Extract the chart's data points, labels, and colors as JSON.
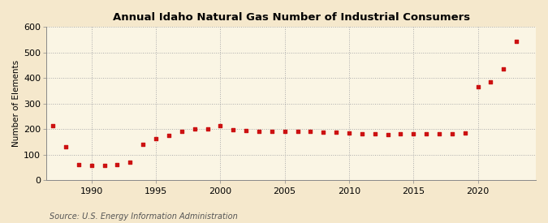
{
  "title": "Annual Idaho Natural Gas Number of Industrial Consumers",
  "ylabel": "Number of Elements",
  "source": "Source: U.S. Energy Information Administration",
  "background_color": "#f5e8cc",
  "plot_background_color": "#faf5e4",
  "marker_color": "#cc1111",
  "years": [
    1987,
    1988,
    1989,
    1990,
    1991,
    1992,
    1993,
    1994,
    1995,
    1996,
    1997,
    1998,
    1999,
    2000,
    2001,
    2002,
    2003,
    2004,
    2005,
    2006,
    2007,
    2008,
    2009,
    2010,
    2011,
    2012,
    2013,
    2014,
    2015,
    2016,
    2017,
    2018,
    2019,
    2020,
    2021,
    2022,
    2023
  ],
  "values": [
    213,
    130,
    63,
    60,
    60,
    62,
    70,
    140,
    163,
    175,
    193,
    200,
    200,
    213,
    197,
    195,
    193,
    193,
    192,
    193,
    192,
    190,
    188,
    185,
    183,
    182,
    180,
    182,
    183,
    181,
    183,
    182,
    185,
    366,
    384,
    437,
    545
  ],
  "ylim": [
    0,
    600
  ],
  "yticks": [
    0,
    100,
    200,
    300,
    400,
    500,
    600
  ],
  "xlim": [
    1986.5,
    2024.5
  ],
  "xticks": [
    1990,
    1995,
    2000,
    2005,
    2010,
    2015,
    2020
  ]
}
